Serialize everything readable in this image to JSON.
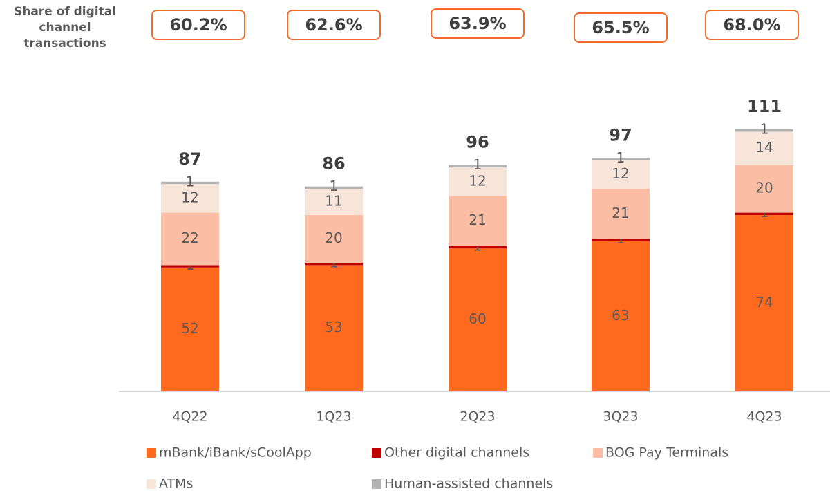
{
  "chart_data": {
    "type": "stacked_bar",
    "digital_share": {
      "label": "Share of digital channel transactions",
      "values": [
        60.2,
        62.6,
        63.9,
        65.5,
        68.0
      ],
      "value_labels": [
        "60.2%",
        "62.6%",
        "63.9%",
        "65.5%",
        "68.0%"
      ],
      "color": "#f26b2a"
    },
    "categories": [
      "4Q22",
      "1Q23",
      "2Q23",
      "3Q23",
      "4Q23"
    ],
    "totals": [
      87,
      86,
      96,
      97,
      111
    ],
    "series": [
      {
        "name": "mBank/iBank/sCoolApp",
        "color": "#ff6a1f",
        "values": [
          52,
          53,
          60,
          63,
          74
        ]
      },
      {
        "name": "Other digital channels",
        "color": "#c00000",
        "values": [
          1,
          1,
          1,
          1,
          1
        ]
      },
      {
        "name": "BOG Pay Terminals",
        "color": "#fbbda3",
        "values": [
          22,
          20,
          21,
          21,
          20
        ]
      },
      {
        "name": "ATMs",
        "color": "#f8e5da",
        "values": [
          12,
          11,
          12,
          12,
          14
        ]
      },
      {
        "name": "Human-assisted channels",
        "color": "#b3b3b3",
        "values": [
          1,
          1,
          1,
          1,
          1
        ]
      }
    ]
  }
}
